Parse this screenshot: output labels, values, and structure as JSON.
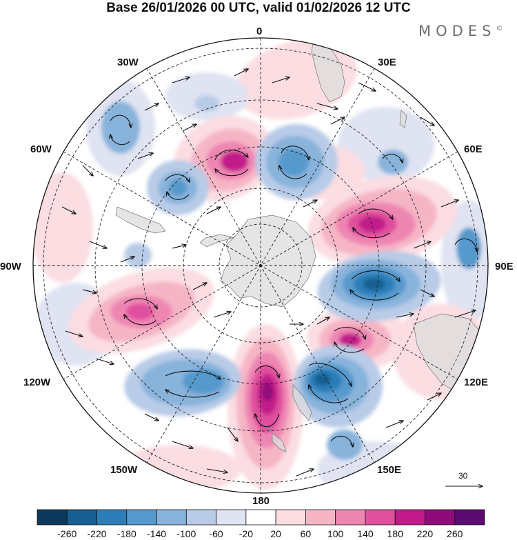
{
  "header": {
    "title": "Base 26/01/2026 00 UTC, valid 01/02/2026 12 UTC",
    "logo_text": "MODES",
    "logo_mark": "©"
  },
  "map": {
    "projection": "south-polar-stereographic",
    "longitude_labels": {
      "lon_0": "0",
      "lon_30e": "30E",
      "lon_60e": "60E",
      "lon_90e": "90E",
      "lon_120e": "120E",
      "lon_150e": "150E",
      "lon_180": "180",
      "lon_150w": "150W",
      "lon_120w": "120W",
      "lon_90w": "90W",
      "lon_60w": "60W",
      "lon_30w": "30W"
    },
    "reference_vector": {
      "value": "30"
    }
  },
  "colorbar": {
    "ticks": [
      "-260",
      "-220",
      "-180",
      "-140",
      "-100",
      "-60",
      "-20",
      "20",
      "60",
      "100",
      "140",
      "180",
      "220",
      "260"
    ],
    "colors": [
      "#0b3a5c",
      "#165f90",
      "#2b7eb8",
      "#5699cc",
      "#88b3db",
      "#b8cbe7",
      "#dfe3f2",
      "#ffffff",
      "#fbdde2",
      "#f6b5c5",
      "#ee86b2",
      "#e0509d",
      "#c21a8a",
      "#8f0b7c",
      "#5a0a70"
    ]
  }
}
